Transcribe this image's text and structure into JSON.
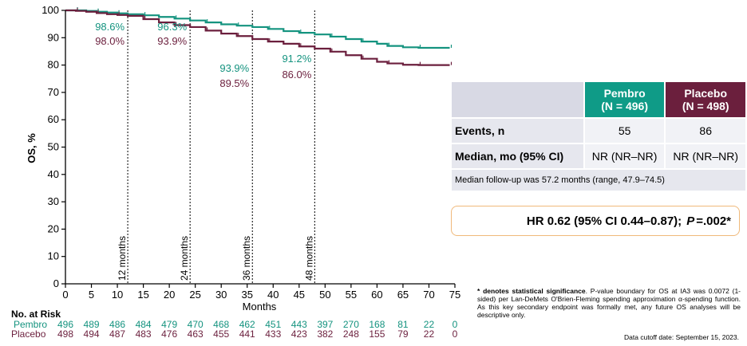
{
  "colors": {
    "pembro": "#14937f",
    "placebo": "#6b1f3d",
    "hr_border": "#f0b97a"
  },
  "chart_data": {
    "type": "line",
    "ylabel": "OS, %",
    "xlabel": "Months",
    "xlim": [
      0,
      75
    ],
    "ylim": [
      0,
      100
    ],
    "x_ticks": [
      0,
      5,
      10,
      15,
      20,
      25,
      30,
      35,
      40,
      45,
      50,
      55,
      60,
      65,
      70,
      75
    ],
    "y_ticks": [
      0,
      10,
      20,
      30,
      40,
      50,
      60,
      70,
      80,
      90,
      100
    ],
    "landmarks": [
      {
        "x": 12,
        "label": "12 months",
        "pembro": "98.6%",
        "placebo": "98.0%"
      },
      {
        "x": 24,
        "label": "24 months",
        "pembro": "96.3%",
        "placebo": "93.9%"
      },
      {
        "x": 36,
        "label": "36 months",
        "pembro": "93.9%",
        "placebo": "89.5%"
      },
      {
        "x": 48,
        "label": "48 months",
        "pembro": "91.2%",
        "placebo": "86.0%"
      }
    ],
    "series": [
      {
        "name": "Pembro",
        "x": [
          0,
          2,
          4,
          6,
          8,
          10,
          12,
          15,
          18,
          21,
          24,
          27,
          30,
          33,
          36,
          39,
          42,
          45,
          48,
          51,
          54,
          57,
          60,
          62,
          65,
          68,
          71,
          74
        ],
        "y": [
          100,
          100,
          99.8,
          99.5,
          99.2,
          98.9,
          98.6,
          98.2,
          97.6,
          97.0,
          96.3,
          95.6,
          94.9,
          94.4,
          93.9,
          93.2,
          92.4,
          91.8,
          91.2,
          90.4,
          89.5,
          88.6,
          87.8,
          87.0,
          86.5,
          86.3,
          86.3,
          86.3
        ]
      },
      {
        "name": "Placebo",
        "x": [
          0,
          2,
          4,
          6,
          8,
          10,
          12,
          15,
          18,
          21,
          24,
          27,
          30,
          33,
          36,
          39,
          42,
          45,
          48,
          51,
          54,
          57,
          60,
          62,
          65,
          68,
          71,
          74
        ],
        "y": [
          100,
          99.8,
          99.5,
          99.0,
          98.6,
          98.3,
          98.0,
          96.8,
          95.6,
          94.6,
          93.9,
          92.6,
          91.5,
          90.6,
          89.5,
          88.6,
          87.8,
          86.8,
          86.0,
          84.9,
          83.6,
          82.3,
          81.2,
          80.6,
          80.1,
          80.0,
          80.0,
          80.0
        ]
      }
    ]
  },
  "risk_table": {
    "title": "No. at Risk",
    "rows": [
      {
        "name": "Pembro",
        "values": [
          "496",
          "489",
          "486",
          "484",
          "479",
          "470",
          "468",
          "462",
          "451",
          "443",
          "397",
          "270",
          "168",
          "81",
          "22",
          "0"
        ]
      },
      {
        "name": "Placebo",
        "values": [
          "498",
          "494",
          "487",
          "483",
          "476",
          "463",
          "455",
          "441",
          "433",
          "423",
          "382",
          "248",
          "155",
          "79",
          "22",
          "0"
        ]
      }
    ]
  },
  "events_table": {
    "pembro_header": "Pembro",
    "pembro_n": "(N = 496)",
    "placebo_header": "Placebo",
    "placebo_n": "(N = 498)",
    "events_label": "Events, n",
    "events_pembro": "55",
    "events_placebo": "86",
    "median_label": "Median, mo (95% CI)",
    "median_pembro": "NR (NR–NR)",
    "median_placebo": "NR (NR–NR)",
    "followup": "Median follow-up was 57.2 months (range, 47.9–74.5)"
  },
  "hr": {
    "text": "HR 0.62 (95%  CI 0.44–0.87);",
    "p_label": "P",
    "p_value": " =.002*"
  },
  "footnote": {
    "bold": "* denotes statistical significance",
    "rest": ". P-value boundary for OS at IA3 was 0.0072 (1-sided) per Lan-DeMets O'Brien-Fleming spending approximation α-spending function. As this key secondary endpoint was formally met, any future OS analyses will be descriptive only."
  },
  "cutoff": "Data cutoff date: September 15, 2023."
}
